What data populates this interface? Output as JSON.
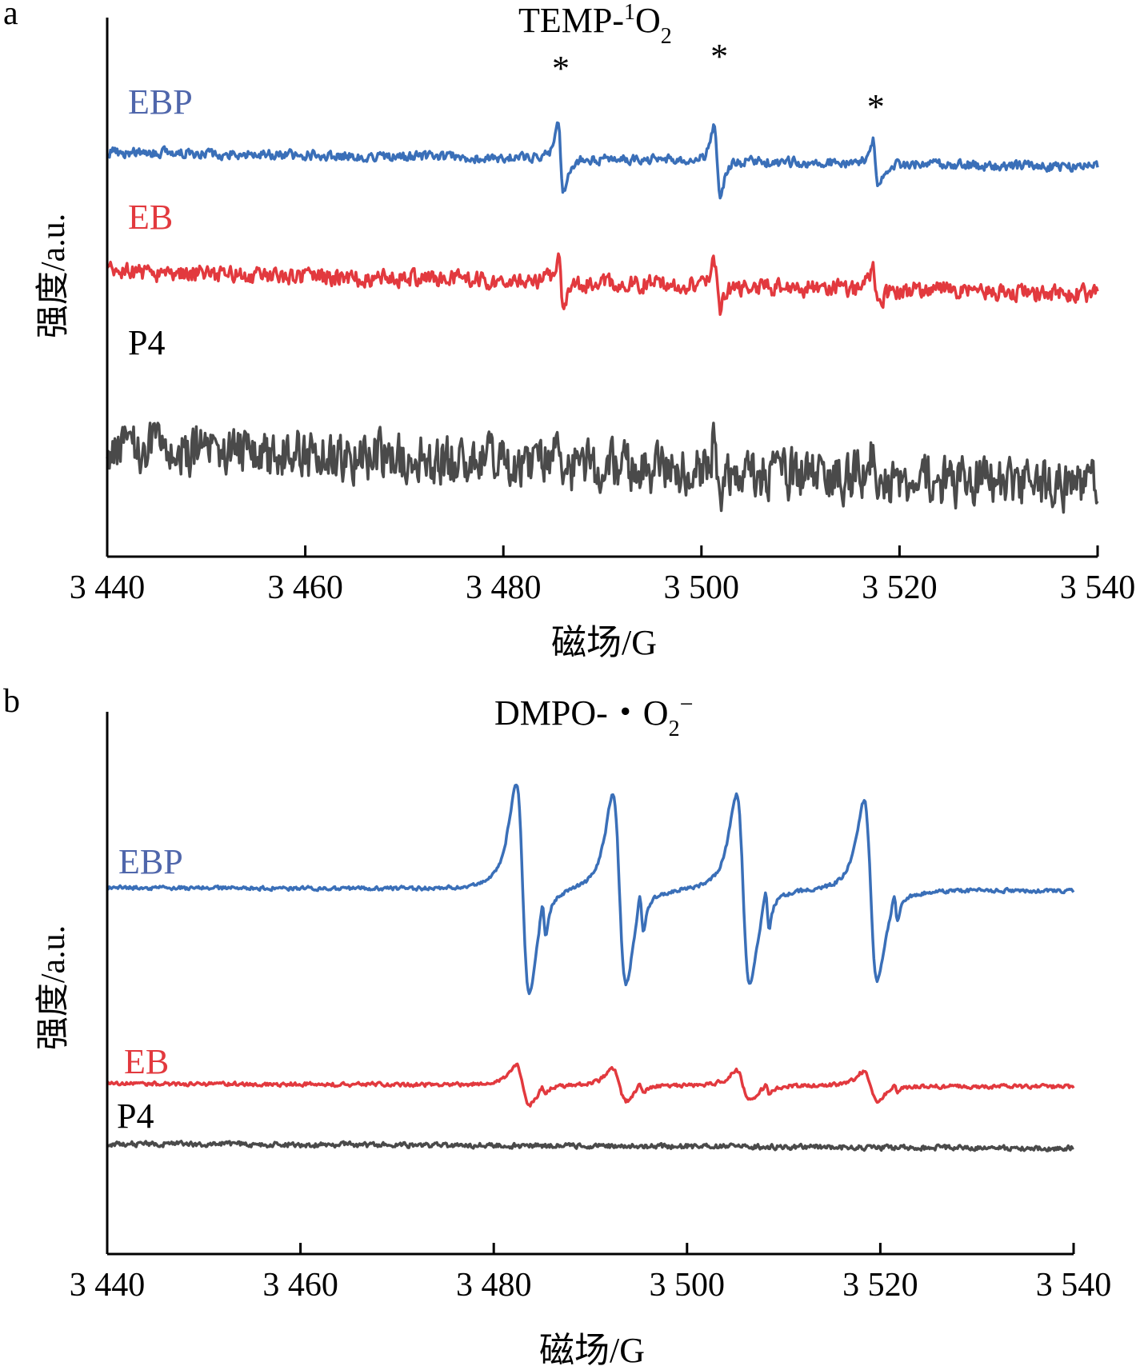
{
  "colors": {
    "EBP": "#3a6fb8",
    "EBP_label": "#4f66ab",
    "EB": "#e2393e",
    "P4": "#4a4a4a",
    "axis": "#000000"
  },
  "chart_data": [
    {
      "panel_letter": "a",
      "type": "line",
      "title": "TEMP-",
      "title_sup": "1",
      "title_main": "O",
      "title_sub": "2",
      "xlabel": "磁场/G",
      "ylabel": "强度/a.u.",
      "xlim": [
        3440,
        3540
      ],
      "xticks": [
        3440,
        3460,
        3480,
        3500,
        3520,
        3540
      ],
      "xtick_labels": [
        "3 440",
        "3 460",
        "3 480",
        "3 500",
        "3 520",
        "3 540"
      ],
      "yticks_shown": false,
      "grid": false,
      "peak_markers": [
        {
          "label": "*",
          "x": 3485.8
        },
        {
          "label": "*",
          "x": 3501.8
        },
        {
          "label": "*",
          "x": 3517.6
        }
      ],
      "series": [
        {
          "name": "EBP",
          "baseline": 3.0,
          "noise": 0.09,
          "slope": -0.3,
          "features": [
            {
              "x": 3485.8,
              "amp": 0.8,
              "w": 0.5
            },
            {
              "x": 3501.6,
              "amp": 0.8,
              "w": 0.55
            },
            {
              "x": 3517.6,
              "amp": 0.55,
              "w": 0.5
            }
          ]
        },
        {
          "name": "EB",
          "baseline": 1.9,
          "noise": 0.12,
          "slope": -0.35,
          "features": [
            {
              "x": 3485.8,
              "amp": 0.4,
              "w": 0.5
            },
            {
              "x": 3501.6,
              "amp": 0.42,
              "w": 0.55
            },
            {
              "x": 3517.6,
              "amp": 0.38,
              "w": 0.5
            }
          ]
        },
        {
          "name": "P4",
          "baseline": 0.5,
          "noise": 0.2,
          "slope": -0.35,
          "features": [
            {
              "x": 3485.8,
              "amp": 0.18,
              "w": 0.5
            },
            {
              "x": 3501.6,
              "amp": 0.3,
              "w": 0.55
            },
            {
              "x": 3517.6,
              "amp": 0.3,
              "w": 0.5
            }
          ]
        }
      ]
    },
    {
      "panel_letter": "b",
      "type": "line",
      "title": "DMPO-・O",
      "title_sub": "2",
      "title_sup": "−",
      "xlabel": "磁场/G",
      "ylabel": "强度/a.u.",
      "xlim": [
        3440,
        3540
      ],
      "xticks": [
        3440,
        3460,
        3480,
        3500,
        3520,
        3540
      ],
      "xtick_labels": [
        "3 440",
        "3 460",
        "3 480",
        "3 500",
        "3 520",
        "3 540"
      ],
      "yticks_shown": false,
      "grid": false,
      "series": [
        {
          "name": "EBP",
          "baseline": 3.0,
          "noise": 0.03,
          "slope": -0.05,
          "features": [
            {
              "x": 3483.0,
              "amp": 2.1,
              "w": 1.2
            },
            {
              "x": 3485.2,
              "amp": 0.4,
              "w": 0.35
            },
            {
              "x": 3493.0,
              "amp": 1.9,
              "w": 1.2
            },
            {
              "x": 3495.3,
              "amp": 0.45,
              "w": 0.35
            },
            {
              "x": 3505.8,
              "amp": 1.9,
              "w": 1.2
            },
            {
              "x": 3508.3,
              "amp": 0.45,
              "w": 0.35
            },
            {
              "x": 3519.0,
              "amp": 1.8,
              "w": 1.2
            },
            {
              "x": 3521.6,
              "amp": 0.3,
              "w": 0.35
            }
          ]
        },
        {
          "name": "EB",
          "baseline": 0.9,
          "noise": 0.03,
          "slope": -0.05,
          "features": [
            {
              "x": 3483.0,
              "amp": 0.4,
              "w": 1.2
            },
            {
              "x": 3485.2,
              "amp": 0.08,
              "w": 0.35
            },
            {
              "x": 3493.0,
              "amp": 0.32,
              "w": 1.2
            },
            {
              "x": 3495.3,
              "amp": 0.1,
              "w": 0.35
            },
            {
              "x": 3505.8,
              "amp": 0.3,
              "w": 1.2
            },
            {
              "x": 3508.3,
              "amp": 0.1,
              "w": 0.35
            },
            {
              "x": 3519.0,
              "amp": 0.3,
              "w": 1.2
            },
            {
              "x": 3521.6,
              "amp": 0.06,
              "w": 0.35
            }
          ]
        },
        {
          "name": "P4",
          "baseline": 0.3,
          "noise": 0.04,
          "slope": -0.08,
          "features": []
        }
      ]
    }
  ]
}
